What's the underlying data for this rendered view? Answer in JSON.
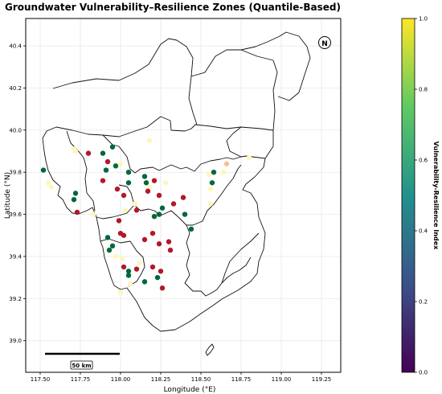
{
  "title": "Groundwater Vulnerability–Resilience Zones (Quantile-Based)",
  "xlabel": "Longitude (°E)",
  "ylabel": "Latitude (°N)",
  "colorbar_label": "Vulnerability-Resilience Index",
  "north_arrow_label": "N",
  "scale_bar_label": "50 km",
  "colors": {
    "high_zone": "#b2182b",
    "low_zone": "#00683a",
    "medium_zone": "#fff6bd",
    "medium_orange": "#f8c08e",
    "colormap": [
      "#440154",
      "#3b528b",
      "#21918c",
      "#5ec962",
      "#fde725"
    ]
  },
  "chart_data": {
    "type": "scatter",
    "title": "Groundwater Vulnerability–Resilience Zones (Quantile-Based)",
    "xlabel": "Longitude (°E)",
    "ylabel": "Latitude (°N)",
    "xlim": [
      117.41,
      119.37
    ],
    "ylim": [
      38.85,
      40.53
    ],
    "xticks": [
      "117.50",
      "117.75",
      "118.00",
      "118.25",
      "118.50",
      "118.75",
      "119.00",
      "119.25"
    ],
    "yticks": [
      "39.0",
      "39.2",
      "39.4",
      "39.6",
      "39.8",
      "40.0",
      "40.2",
      "40.4"
    ],
    "grid": true,
    "colorbar": {
      "label": "Vulnerability-Resilience Index",
      "range": [
        0.0,
        1.0
      ],
      "ticks": [
        "0.0",
        "0.2",
        "0.4",
        "0.6",
        "0.8",
        "1.0"
      ],
      "colormap": "viridis"
    },
    "series": [
      {
        "zone": "high",
        "points": [
          [
            117.8,
            39.89
          ],
          [
            117.92,
            39.85
          ],
          [
            117.89,
            39.76
          ],
          [
            117.98,
            39.72
          ],
          [
            118.02,
            39.69
          ],
          [
            117.73,
            39.61
          ],
          [
            117.99,
            39.57
          ],
          [
            118.1,
            39.62
          ],
          [
            118.17,
            39.71
          ],
          [
            118.21,
            39.76
          ],
          [
            118.24,
            39.69
          ],
          [
            118.33,
            39.65
          ],
          [
            118.39,
            39.68
          ],
          [
            118.2,
            39.51
          ],
          [
            118.0,
            39.51
          ],
          [
            118.02,
            39.5
          ],
          [
            118.15,
            39.48
          ],
          [
            118.24,
            39.46
          ],
          [
            118.3,
            39.47
          ],
          [
            118.31,
            39.43
          ],
          [
            118.02,
            39.35
          ],
          [
            118.1,
            39.34
          ],
          [
            118.2,
            39.35
          ],
          [
            118.25,
            39.33
          ],
          [
            118.26,
            39.25
          ]
        ]
      },
      {
        "zone": "low",
        "points": [
          [
            117.52,
            39.81
          ],
          [
            117.71,
            39.67
          ],
          [
            117.72,
            39.7
          ],
          [
            117.89,
            39.89
          ],
          [
            117.95,
            39.92
          ],
          [
            117.91,
            39.81
          ],
          [
            117.97,
            39.83
          ],
          [
            118.05,
            39.8
          ],
          [
            118.05,
            39.75
          ],
          [
            118.15,
            39.78
          ],
          [
            118.16,
            39.75
          ],
          [
            118.26,
            39.63
          ],
          [
            118.24,
            39.6
          ],
          [
            118.21,
            39.59
          ],
          [
            118.4,
            39.6
          ],
          [
            118.44,
            39.53
          ],
          [
            118.58,
            39.8
          ],
          [
            118.57,
            39.75
          ],
          [
            117.92,
            39.49
          ],
          [
            117.95,
            39.45
          ],
          [
            117.93,
            39.43
          ],
          [
            118.05,
            39.33
          ],
          [
            118.05,
            39.31
          ],
          [
            118.15,
            39.28
          ],
          [
            118.23,
            39.3
          ]
        ]
      },
      {
        "zone": "medium",
        "points": [
          [
            117.71,
            39.91
          ],
          [
            117.72,
            39.9
          ],
          [
            118.18,
            39.95
          ],
          [
            118.0,
            39.84
          ],
          [
            118.18,
            39.73
          ],
          [
            118.28,
            39.75
          ],
          [
            118.09,
            39.65
          ],
          [
            118.03,
            39.62
          ],
          [
            117.83,
            39.6
          ],
          [
            117.55,
            39.75
          ],
          [
            117.57,
            39.73
          ],
          [
            118.56,
            39.65
          ],
          [
            118.56,
            39.72
          ],
          [
            118.64,
            39.8
          ],
          [
            118.55,
            39.79
          ],
          [
            117.97,
            39.4
          ],
          [
            118.01,
            39.39
          ],
          [
            118.06,
            39.27
          ],
          [
            118.0,
            39.23
          ],
          [
            118.12,
            39.37
          ],
          [
            118.8,
            39.87
          ]
        ]
      },
      {
        "zone": "medium-orange",
        "points": [
          [
            118.66,
            39.84
          ]
        ]
      }
    ]
  }
}
